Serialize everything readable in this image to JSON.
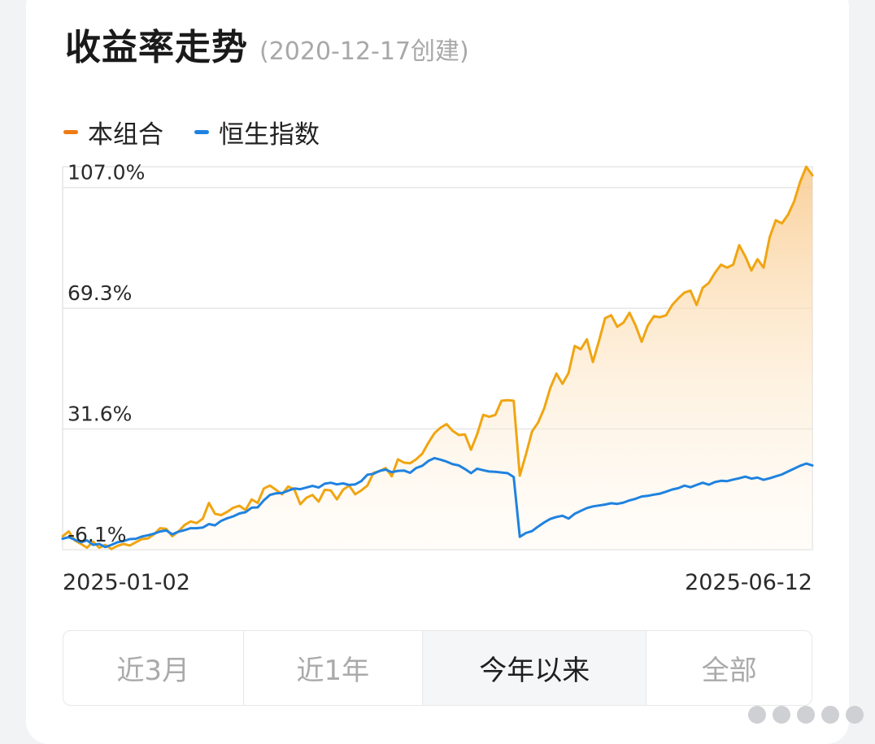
{
  "header": {
    "title": "收益率走势",
    "subtitle": "(2020-12-17创建)"
  },
  "legend": [
    {
      "label": "本组合",
      "color": "#f07a12"
    },
    {
      "label": "恒生指数",
      "color": "#1f82e0"
    }
  ],
  "tabs": [
    {
      "label": "近3月",
      "active": false
    },
    {
      "label": "近1年",
      "active": false
    },
    {
      "label": "今年以来",
      "active": true
    },
    {
      "label": "全部",
      "active": false
    }
  ],
  "chart_data": {
    "type": "area",
    "y_ticks": [
      -6.1,
      31.6,
      69.3,
      107.0
    ],
    "y_tick_labels": [
      "-6.1%",
      "31.6%",
      "69.3%",
      "107.0%"
    ],
    "ylim": [
      -6.1,
      113.5
    ],
    "x_labels": [
      "2025-01-02",
      "2025-06-12"
    ],
    "grid": true,
    "series": [
      {
        "name": "本组合",
        "color": "#f0a512",
        "values": [
          -1.9,
          -0.4,
          -3.2,
          -4.3,
          -5.5,
          -3.6,
          -5.5,
          -4.6,
          -5.9,
          -4.9,
          -4.3,
          -4.8,
          -3.8,
          -2.8,
          -2.6,
          -1.3,
          0.6,
          0.4,
          -1.9,
          -0.4,
          1.6,
          2.7,
          2.2,
          3.6,
          8.5,
          5.1,
          4.7,
          5.7,
          7.0,
          7.6,
          6.3,
          9.6,
          8.5,
          13.0,
          13.9,
          12.6,
          11.2,
          13.6,
          12.8,
          8.1,
          10.1,
          11.0,
          8.9,
          12.6,
          12.4,
          9.6,
          12.6,
          13.9,
          11.2,
          12.4,
          13.9,
          17.9,
          18.4,
          19.4,
          16.8,
          22.1,
          21.1,
          20.9,
          22.1,
          23.9,
          27.3,
          30.3,
          32.0,
          33.1,
          31.0,
          29.7,
          29.9,
          25.1,
          29.9,
          36.0,
          35.4,
          36.0,
          40.4,
          40.6,
          40.4,
          17.0,
          23.6,
          30.8,
          33.6,
          38.0,
          44.4,
          48.9,
          45.7,
          49.1,
          57.5,
          56.5,
          59.6,
          52.5,
          59.1,
          66.2,
          67.1,
          63.5,
          64.8,
          67.9,
          63.9,
          58.8,
          63.9,
          66.8,
          66.5,
          67.1,
          70.3,
          72.4,
          74.2,
          74.8,
          70.3,
          75.7,
          77.2,
          80.3,
          82.9,
          82.0,
          82.9,
          89.0,
          85.5,
          81.1,
          84.6,
          82.0,
          91.5,
          96.8,
          95.8,
          98.5,
          102.6,
          108.8,
          113.5,
          110.8
        ]
      },
      {
        "name": "恒生指数",
        "color": "#1f82e0",
        "values": [
          -2.7,
          -2.2,
          -3.0,
          -3.8,
          -3.2,
          -4.6,
          -4.3,
          -5.3,
          -4.6,
          -3.8,
          -3.4,
          -2.8,
          -2.7,
          -2.0,
          -1.6,
          -1.1,
          -0.4,
          -0.1,
          -1.3,
          -0.5,
          0.0,
          0.6,
          0.6,
          0.8,
          1.9,
          1.5,
          2.9,
          3.7,
          4.3,
          5.2,
          5.6,
          7.0,
          7.1,
          9.3,
          11.0,
          11.5,
          11.6,
          12.3,
          13.0,
          12.8,
          13.3,
          13.8,
          13.3,
          14.5,
          14.8,
          14.3,
          14.6,
          14.1,
          14.3,
          15.3,
          17.3,
          17.6,
          18.5,
          18.9,
          18.1,
          18.5,
          18.6,
          17.9,
          19.4,
          20.1,
          21.6,
          22.5,
          22.0,
          21.4,
          20.6,
          20.2,
          19.1,
          17.8,
          19.2,
          18.7,
          18.3,
          18.2,
          18.0,
          17.8,
          16.6,
          -2.1,
          -0.9,
          -0.3,
          1.1,
          2.4,
          3.5,
          4.1,
          4.5,
          3.6,
          5.1,
          6.0,
          6.9,
          7.4,
          7.7,
          8.0,
          8.4,
          8.2,
          8.6,
          9.3,
          9.8,
          10.5,
          10.7,
          11.1,
          11.4,
          12.0,
          12.7,
          13.1,
          13.9,
          13.4,
          14.1,
          14.8,
          14.2,
          15.0,
          15.4,
          15.3,
          15.8,
          16.2,
          16.7,
          16.1,
          16.4,
          15.7,
          16.2,
          16.8,
          17.4,
          18.3,
          19.2,
          20.1,
          20.8,
          20.2
        ]
      }
    ]
  }
}
